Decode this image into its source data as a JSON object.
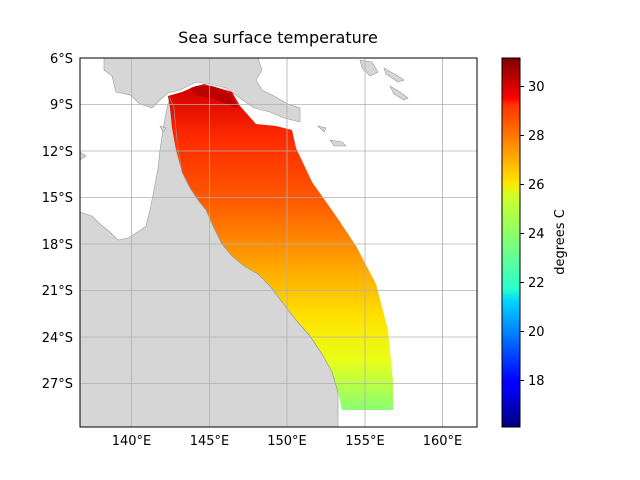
{
  "chart_data": {
    "type": "heatmap",
    "title": "Sea surface temperature",
    "x_tick_labels": [
      "140°E",
      "145°E",
      "150°E",
      "155°E",
      "160°E"
    ],
    "y_tick_labels": [
      "6°S",
      "9°S",
      "12°S",
      "15°S",
      "18°S",
      "21°S",
      "24°S",
      "27°S"
    ],
    "x_ticks": [
      140,
      145,
      150,
      155,
      160
    ],
    "y_ticks": [
      -6,
      -9,
      -12,
      -15,
      -18,
      -21,
      -24,
      -27
    ],
    "xlim": [
      136.7,
      162.3
    ],
    "ylim": [
      -29.8,
      -5.9
    ],
    "grid": true,
    "colorbar": {
      "label": "degrees C",
      "colormap": "jet",
      "range": [
        16.1,
        31.2
      ],
      "tick_labels": [
        "18",
        "20",
        "22",
        "24",
        "26",
        "28",
        "30"
      ],
      "ticks": [
        18,
        20,
        22,
        24,
        26,
        28,
        30
      ]
    },
    "land_color": "#d6d6d6",
    "grid_color": "#b0b0b0"
  }
}
